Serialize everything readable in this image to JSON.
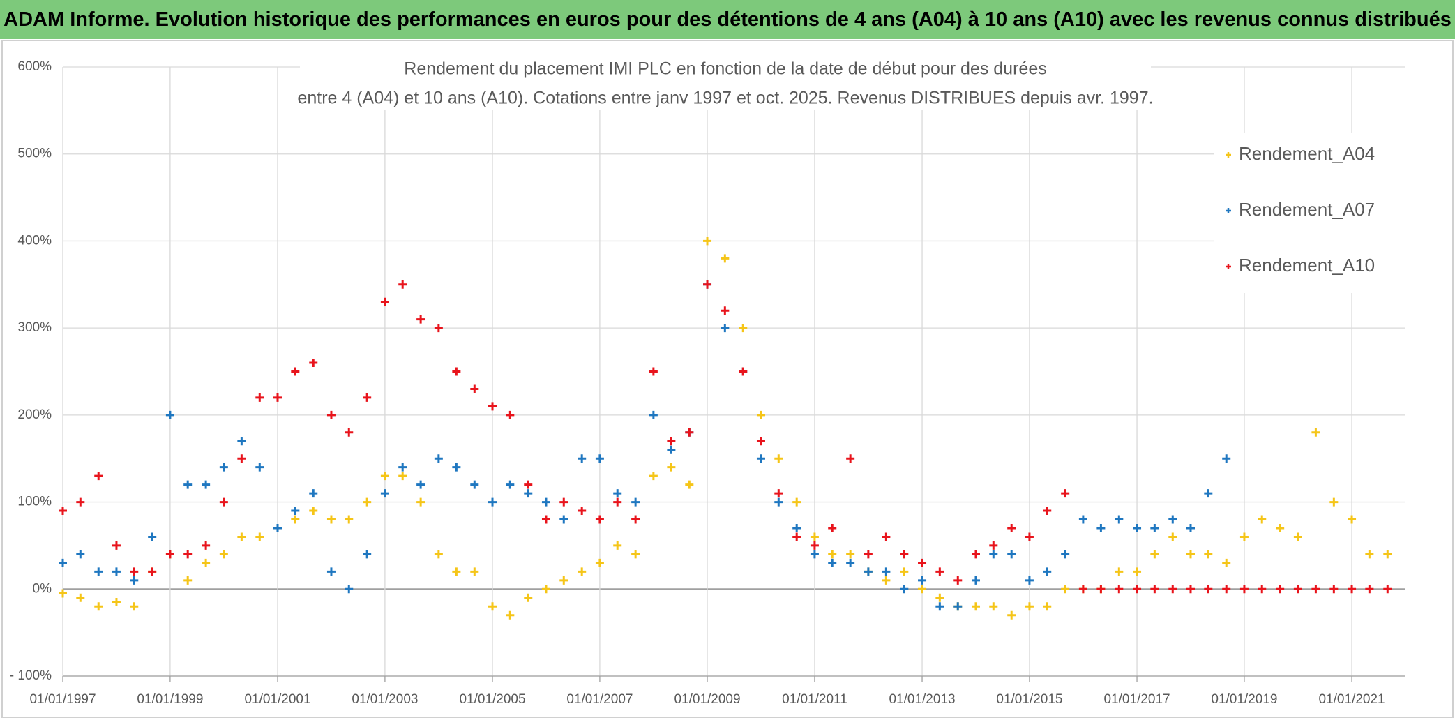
{
  "header": "ADAM Informe. Evolution historique des performances en euros pour des détentions de 4 ans (A04) à 10 ans (A10) avec les revenus connus distribués",
  "chart_data": {
    "type": "scatter",
    "title": "Rendement du placement IMI PLC en fonction de la date de début pour des durées",
    "subtitle": "entre 4 (A04) et 10 ans (A10). Cotations entre janv 1997 et oct. 2025. Revenus DISTRIBUES depuis avr. 1997.",
    "legend": "right",
    "grid": true,
    "xlim": [
      "1997-01-01",
      "2022-01-01"
    ],
    "xticks": [
      {
        "value": "1997-01-01",
        "label": "01/01/1997"
      },
      {
        "value": "1999-01-01",
        "label": "01/01/1999"
      },
      {
        "value": "2001-01-01",
        "label": "01/01/2001"
      },
      {
        "value": "2003-01-01",
        "label": "01/01/2003"
      },
      {
        "value": "2005-01-01",
        "label": "01/01/2005"
      },
      {
        "value": "2007-01-01",
        "label": "01/01/2007"
      },
      {
        "value": "2009-01-01",
        "label": "01/01/2009"
      },
      {
        "value": "2011-01-01",
        "label": "01/01/2011"
      },
      {
        "value": "2013-01-01",
        "label": "01/01/2013"
      },
      {
        "value": "2015-01-01",
        "label": "01/01/2015"
      },
      {
        "value": "2017-01-01",
        "label": "01/01/2017"
      },
      {
        "value": "2019-01-01",
        "label": "01/01/2019"
      },
      {
        "value": "2021-01-01",
        "label": "01/01/2021"
      }
    ],
    "ylim": [
      -100,
      600
    ],
    "yticks": [
      {
        "value": -100,
        "label": "- 100%"
      },
      {
        "value": 0,
        "label": "0%"
      },
      {
        "value": 100,
        "label": "100%"
      },
      {
        "value": 200,
        "label": "200%"
      },
      {
        "value": 300,
        "label": "300%"
      },
      {
        "value": 400,
        "label": "400%"
      },
      {
        "value": 500,
        "label": "500%"
      },
      {
        "value": 600,
        "label": "600%"
      }
    ],
    "x": [
      "1997-01-01",
      "1997-05-01",
      "1997-09-01",
      "1998-01-01",
      "1998-05-01",
      "1998-09-01",
      "1999-01-01",
      "1999-05-01",
      "1999-09-01",
      "2000-01-01",
      "2000-05-01",
      "2000-09-01",
      "2001-01-01",
      "2001-05-01",
      "2001-09-01",
      "2002-01-01",
      "2002-05-01",
      "2002-09-01",
      "2003-01-01",
      "2003-05-01",
      "2003-09-01",
      "2004-01-01",
      "2004-05-01",
      "2004-09-01",
      "2005-01-01",
      "2005-05-01",
      "2005-09-01",
      "2006-01-01",
      "2006-05-01",
      "2006-09-01",
      "2007-01-01",
      "2007-05-01",
      "2007-09-01",
      "2008-01-01",
      "2008-05-01",
      "2008-09-01",
      "2009-01-01",
      "2009-05-01",
      "2009-09-01",
      "2010-01-01",
      "2010-05-01",
      "2010-09-01",
      "2011-01-01",
      "2011-05-01",
      "2011-09-01",
      "2012-01-01",
      "2012-05-01",
      "2012-09-01",
      "2013-01-01",
      "2013-05-01",
      "2013-09-01",
      "2014-01-01",
      "2014-05-01",
      "2014-09-01",
      "2015-01-01",
      "2015-05-01",
      "2015-09-01",
      "2016-01-01",
      "2016-05-01",
      "2016-09-01",
      "2017-01-01",
      "2017-05-01",
      "2017-09-01",
      "2018-01-01",
      "2018-05-01",
      "2018-09-01",
      "2019-01-01",
      "2019-05-01",
      "2019-09-01",
      "2020-01-01",
      "2020-05-01",
      "2020-09-01",
      "2021-01-01",
      "2021-05-01",
      "2021-09-01"
    ],
    "series": [
      {
        "name": "Rendement_A04",
        "color": "#f5c518",
        "values": [
          -5,
          -10,
          -20,
          -15,
          -20,
          20,
          40,
          10,
          30,
          40,
          60,
          60,
          70,
          80,
          90,
          80,
          80,
          100,
          130,
          130,
          100,
          40,
          20,
          20,
          -20,
          -30,
          -10,
          0,
          10,
          20,
          30,
          50,
          40,
          130,
          140,
          120,
          400,
          380,
          300,
          200,
          150,
          100,
          60,
          40,
          40,
          20,
          10,
          20,
          0,
          -10,
          -20,
          -20,
          -20,
          -30,
          -20,
          -20,
          0,
          0,
          0,
          20,
          20,
          40,
          60,
          40,
          40,
          30,
          60,
          80,
          70,
          60,
          180,
          100,
          80,
          40,
          40
        ]
      },
      {
        "name": "Rendement_A07",
        "color": "#1f77c0",
        "values": [
          30,
          40,
          20,
          20,
          10,
          60,
          200,
          120,
          120,
          140,
          170,
          140,
          70,
          90,
          110,
          20,
          0,
          40,
          110,
          140,
          120,
          150,
          140,
          120,
          100,
          120,
          110,
          100,
          80,
          150,
          150,
          110,
          100,
          200,
          160,
          180,
          350,
          300,
          250,
          150,
          100,
          70,
          40,
          30,
          30,
          20,
          20,
          0,
          10,
          -20,
          -20,
          10,
          40,
          40,
          10,
          20,
          40,
          80,
          70,
          80,
          70,
          70,
          80,
          70,
          110,
          150,
          null,
          null,
          null,
          null,
          null,
          null,
          null,
          null,
          null
        ]
      },
      {
        "name": "Rendement_A10",
        "color": "#e8141c",
        "values": [
          90,
          100,
          130,
          50,
          20,
          20,
          40,
          40,
          50,
          100,
          150,
          220,
          220,
          250,
          260,
          200,
          180,
          220,
          330,
          350,
          310,
          300,
          250,
          230,
          210,
          200,
          120,
          80,
          100,
          90,
          80,
          100,
          80,
          250,
          170,
          180,
          350,
          320,
          250,
          170,
          110,
          60,
          50,
          70,
          150,
          40,
          60,
          40,
          30,
          20,
          10,
          40,
          50,
          70,
          60,
          90,
          110,
          0,
          0,
          0,
          0,
          0,
          0,
          0,
          0,
          0,
          0,
          0,
          0,
          0,
          0,
          0,
          0,
          0,
          0
        ]
      }
    ]
  }
}
